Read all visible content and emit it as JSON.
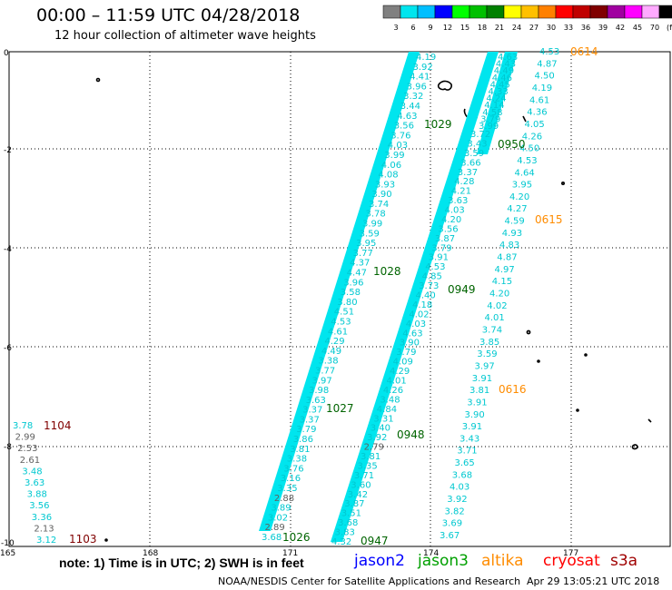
{
  "title": "00:00 – 11:59 UTC 04/28/2018",
  "subtitle": "12 hour collection of altimeter wave heights",
  "colorbar": {
    "labels": [
      "3",
      "6",
      "9",
      "12",
      "15",
      "18",
      "21",
      "24",
      "27",
      "30",
      "33",
      "36",
      "39",
      "42",
      "45",
      "70",
      "(ft)"
    ],
    "colors": [
      "#808080",
      "#00e5ee",
      "#00bfff",
      "#0000ff",
      "#00ff00",
      "#00c000",
      "#008000",
      "#ffff00",
      "#ffc000",
      "#ff8000",
      "#ff0000",
      "#c00000",
      "#800000",
      "#a000a0",
      "#ff00ff",
      "#ffaaff",
      "#000000"
    ]
  },
  "axes": {
    "y_ticks": [
      "0",
      "-2",
      "-4",
      "-6",
      "-8",
      "-10"
    ],
    "x_ticks": [
      "165",
      "168",
      "171",
      "174",
      "177"
    ]
  },
  "times": {
    "t1104": "1104",
    "t1103": "1103",
    "t1029": "1029",
    "t0950": "0950",
    "t0614": "0614",
    "t0615": "0615",
    "t1028": "1028",
    "t0949": "0949",
    "t0616": "0616",
    "t1027": "1027",
    "t0948": "0948",
    "t1026": "1026",
    "t0947": "0947"
  },
  "tracks": {
    "track_a": [
      "4.19",
      "3.92",
      "4.41",
      "3.96",
      "3.32",
      "3.44",
      "4.63",
      "3.56",
      "3.76",
      "4.03",
      "3.99",
      "4.06",
      "4.08",
      "3.93",
      "3.90",
      "3.74",
      "3.78",
      "3.99",
      "3.59",
      "3.95",
      "3.77",
      "4.37",
      "4.47",
      "3.96",
      "3.58",
      "3.80",
      "4.51",
      "4.53",
      "4.61",
      "4.29",
      "4.49",
      "3.38",
      "3.77",
      "3.97",
      "3.98",
      "3.63",
      "3.37",
      "3.37",
      "3.79",
      "3.86",
      "3.81",
      "3.38",
      "3.76",
      "3.16",
      "3.35",
      "2.88",
      "3.89",
      "3.02",
      "2.89",
      "3.68"
    ],
    "track_b": [
      "3.72",
      "3.43",
      "3.59",
      "3.66",
      "3.37",
      "4.28",
      "4.21",
      "3.63",
      "4.03",
      "4.20",
      "3.56",
      "3.87",
      "3.79",
      "3.91",
      "4.53",
      "4.85",
      "3.73",
      "4.40",
      "4.18",
      "4.02",
      "4.03",
      "4.63",
      "3.90",
      "3.79",
      "4.09",
      "4.29",
      "4.01",
      "4.26",
      "3.48",
      "4.84",
      "3.31",
      "3.40",
      "3.92",
      "2.79",
      "3.81",
      "3.35",
      "3.71",
      "3.60",
      "3.42",
      "3.87",
      "3.51",
      "3.68",
      "3.83",
      "4.32"
    ],
    "track_c_top": [
      "4.63",
      "4.43",
      "4.49",
      "4.46",
      "4.45",
      "4.33",
      "4.24",
      "4.14",
      "4.58",
      "3.79",
      "3.99"
    ],
    "track_d": [
      "4.53",
      "4.87",
      "4.50",
      "4.19",
      "4.61",
      "4.36",
      "4.05",
      "4.26",
      "4.50",
      "4.53",
      "4.64",
      "3.95",
      "4.20",
      "4.27",
      "4.59",
      "4.93",
      "4.83",
      "4.87",
      "4.97",
      "4.15",
      "4.20",
      "4.02",
      "4.01",
      "3.74",
      "3.85",
      "3.59",
      "3.97",
      "3.91",
      "3.81",
      "3.91",
      "3.90",
      "3.91",
      "3.43",
      "3.71",
      "3.65",
      "3.68",
      "4.03",
      "3.92",
      "3.82",
      "3.69",
      "3.67"
    ],
    "track_left": [
      "3.78",
      "2.99",
      "2.53",
      "2.61",
      "3.48",
      "3.63",
      "3.88",
      "3.56",
      "3.36",
      "2.13",
      "3.12"
    ]
  },
  "legend": {
    "note": "note: 1) Time is in UTC; 2) SWH is in feet",
    "satellites": [
      {
        "name": "jason2",
        "color": "#0000ff"
      },
      {
        "name": "jason3",
        "color": "#00a000"
      },
      {
        "name": "altika",
        "color": "#ff8c00"
      },
      {
        "name": "cryosat",
        "color": "#ff0000"
      },
      {
        "name": "s3a",
        "color": "#a00000"
      }
    ],
    "credit": "NOAA/NESDIS Center for Satellite Applications and Research",
    "timestamp": "Apr 29 13:05:21 UTC 2018"
  }
}
